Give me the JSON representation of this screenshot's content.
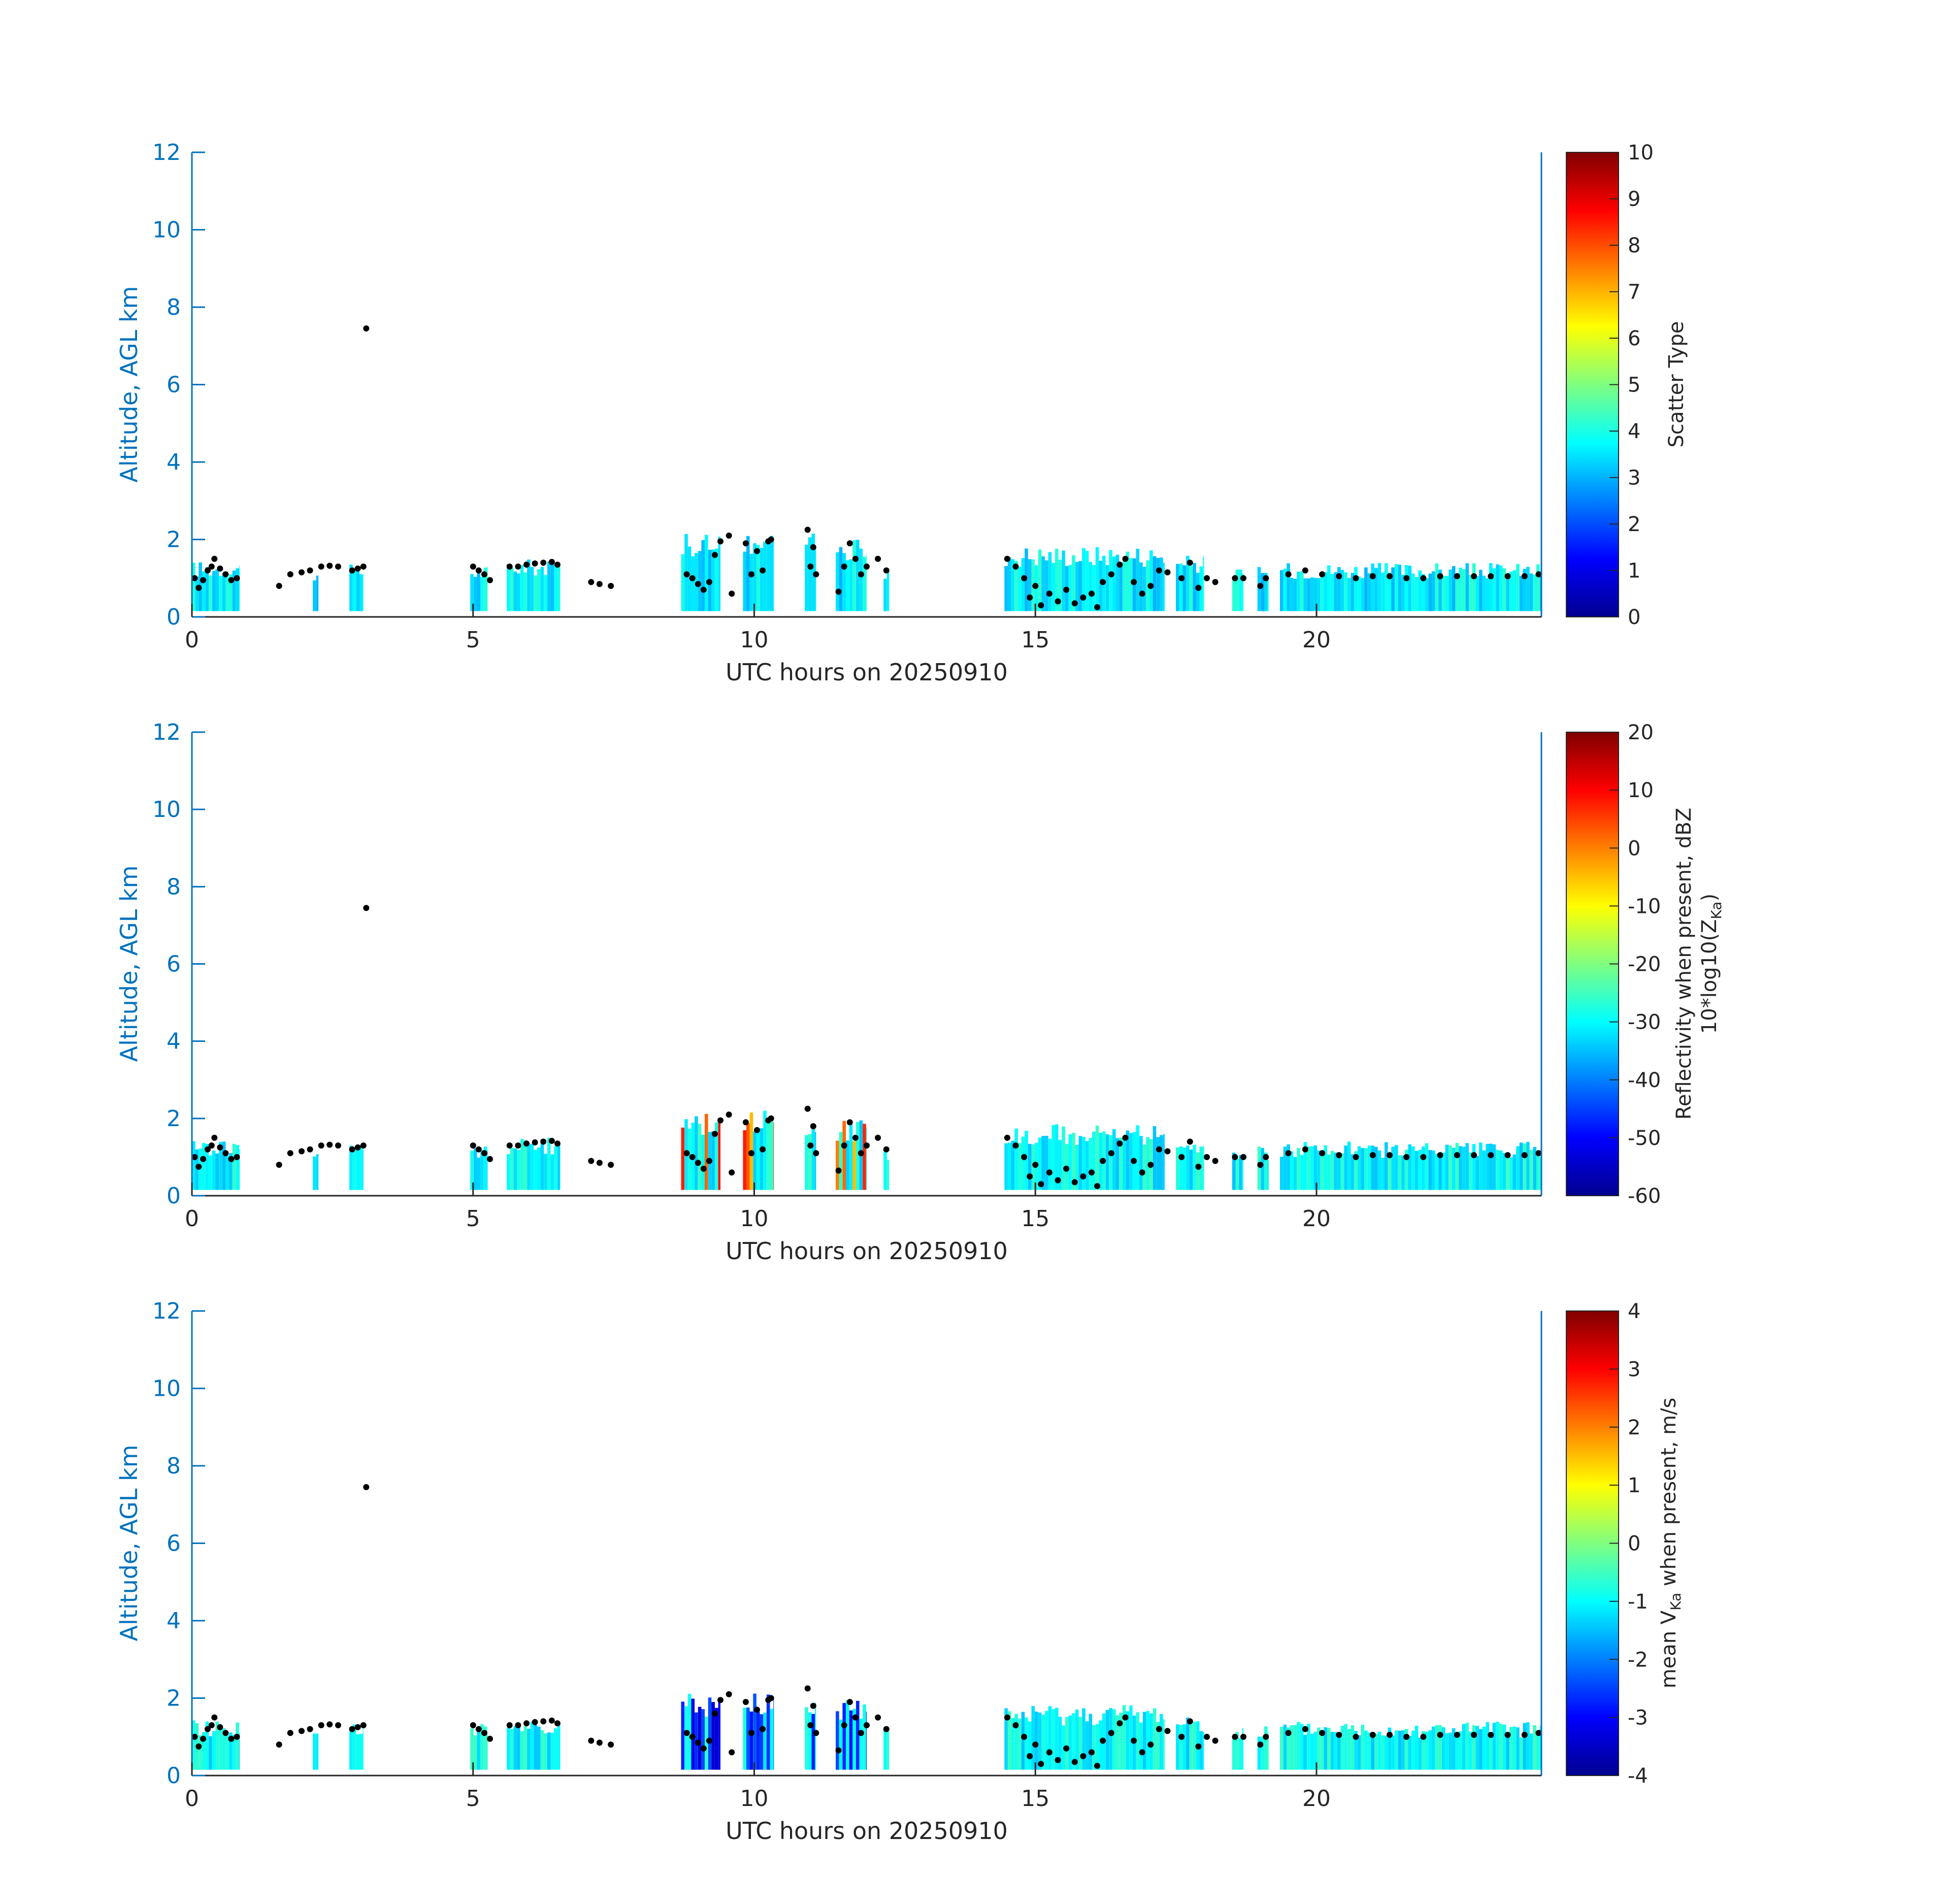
{
  "colors": {
    "axis_left": "#0072BD",
    "axis_bottom": "#262626",
    "points": "#000000",
    "colormap": "jet"
  },
  "chart_data": [
    {
      "type": "heatmap",
      "xlabel": "UTC hours on 20250910",
      "ylabel": "Altitude, AGL km",
      "xlim": [
        0,
        24
      ],
      "ylim": [
        0,
        12
      ],
      "xticks": [
        "0",
        "5",
        "10",
        "15",
        "20"
      ],
      "yticks": [
        "0",
        "2",
        "4",
        "6",
        "8",
        "10",
        "12"
      ],
      "colorbar": {
        "label": "Scatter Type",
        "range": [
          0,
          10
        ],
        "ticks": [
          "0",
          "1",
          "2",
          "3",
          "4",
          "5",
          "6",
          "7",
          "8",
          "9",
          "10"
        ]
      },
      "dominant_value": 3.6
    },
    {
      "type": "heatmap",
      "xlabel": "UTC hours on 20250910",
      "ylabel": "Altitude, AGL km",
      "xlim": [
        0,
        24
      ],
      "ylim": [
        0,
        12
      ],
      "xticks": [
        "0",
        "5",
        "10",
        "15",
        "20"
      ],
      "yticks": [
        "0",
        "2",
        "4",
        "6",
        "8",
        "10",
        "12"
      ],
      "colorbar": {
        "label_line1": "Reflectivity when present, dBZ",
        "label_line2": "10*log10(Z",
        "label_sub": "Ka",
        "label_close": ")",
        "range": [
          -60,
          20
        ],
        "ticks": [
          "-60",
          "-50",
          "-40",
          "-30",
          "-20",
          "-10",
          "0",
          "10",
          "20"
        ]
      },
      "dominant_value": -30
    },
    {
      "type": "heatmap",
      "xlabel": "UTC hours on 20250910",
      "ylabel": "Altitude, AGL km",
      "xlim": [
        0,
        24
      ],
      "ylim": [
        0,
        12
      ],
      "xticks": [
        "0",
        "5",
        "10",
        "15",
        "20"
      ],
      "yticks": [
        "0",
        "2",
        "4",
        "6",
        "8",
        "10",
        "12"
      ],
      "colorbar": {
        "label_pre": "mean V",
        "label_sub": "Ka",
        "label_post": " when present, m/s",
        "range": [
          -4,
          4
        ],
        "ticks": [
          "-4",
          "-3",
          "-2",
          "-1",
          "0",
          "1",
          "2",
          "3",
          "4"
        ]
      },
      "dominant_value": -1
    }
  ],
  "cloud_segments": [
    {
      "start": 0.0,
      "end": 0.85,
      "top": 1.45
    },
    {
      "start": 2.15,
      "end": 2.25,
      "top": 1.3
    },
    {
      "start": 2.8,
      "end": 3.05,
      "top": 1.35
    },
    {
      "start": 4.95,
      "end": 5.25,
      "top": 1.35
    },
    {
      "start": 5.6,
      "end": 6.55,
      "top": 1.5
    },
    {
      "start": 8.7,
      "end": 9.4,
      "top": 2.15
    },
    {
      "start": 9.8,
      "end": 10.35,
      "top": 2.2
    },
    {
      "start": 10.9,
      "end": 11.1,
      "top": 2.2
    },
    {
      "start": 11.45,
      "end": 12.0,
      "top": 2.0
    },
    {
      "start": 12.3,
      "end": 12.4,
      "top": 1.25
    },
    {
      "start": 14.45,
      "end": 17.3,
      "top": 1.85
    },
    {
      "start": 17.5,
      "end": 18.0,
      "top": 1.6
    },
    {
      "start": 18.5,
      "end": 18.7,
      "top": 1.3
    },
    {
      "start": 18.95,
      "end": 19.15,
      "top": 1.3
    },
    {
      "start": 19.35,
      "end": 24.0,
      "top": 1.4
    }
  ],
  "cloud_base_points": [
    [
      0.05,
      1.0
    ],
    [
      0.12,
      0.75
    ],
    [
      0.2,
      0.95
    ],
    [
      0.28,
      1.2
    ],
    [
      0.35,
      1.3
    ],
    [
      0.4,
      1.5
    ],
    [
      0.5,
      1.25
    ],
    [
      0.6,
      1.1
    ],
    [
      0.7,
      0.95
    ],
    [
      0.8,
      1.0
    ],
    [
      1.55,
      0.8
    ],
    [
      1.75,
      1.1
    ],
    [
      1.95,
      1.15
    ],
    [
      2.1,
      1.2
    ],
    [
      2.3,
      1.3
    ],
    [
      2.45,
      1.32
    ],
    [
      2.6,
      1.3
    ],
    [
      2.85,
      1.2
    ],
    [
      2.95,
      1.25
    ],
    [
      3.05,
      1.3
    ],
    [
      3.1,
      7.45
    ],
    [
      5.0,
      1.3
    ],
    [
      5.1,
      1.2
    ],
    [
      5.2,
      1.1
    ],
    [
      5.3,
      0.95
    ],
    [
      5.65,
      1.3
    ],
    [
      5.8,
      1.3
    ],
    [
      5.95,
      1.35
    ],
    [
      6.1,
      1.38
    ],
    [
      6.25,
      1.4
    ],
    [
      6.4,
      1.42
    ],
    [
      6.5,
      1.35
    ],
    [
      7.1,
      0.9
    ],
    [
      7.25,
      0.85
    ],
    [
      7.45,
      0.8
    ],
    [
      8.8,
      1.1
    ],
    [
      8.9,
      1.0
    ],
    [
      9.0,
      0.85
    ],
    [
      9.1,
      0.7
    ],
    [
      9.2,
      0.9
    ],
    [
      9.3,
      1.6
    ],
    [
      9.4,
      1.95
    ],
    [
      9.55,
      2.1
    ],
    [
      9.6,
      0.6
    ],
    [
      9.85,
      1.9
    ],
    [
      9.95,
      1.1
    ],
    [
      10.05,
      1.7
    ],
    [
      10.15,
      1.2
    ],
    [
      10.25,
      1.95
    ],
    [
      10.3,
      2.0
    ],
    [
      10.95,
      2.25
    ],
    [
      11.0,
      1.3
    ],
    [
      11.05,
      1.8
    ],
    [
      11.1,
      1.1
    ],
    [
      11.5,
      0.65
    ],
    [
      11.6,
      1.3
    ],
    [
      11.7,
      1.9
    ],
    [
      11.8,
      1.5
    ],
    [
      11.9,
      1.1
    ],
    [
      12.0,
      1.3
    ],
    [
      12.2,
      1.5
    ],
    [
      12.35,
      1.2
    ],
    [
      14.5,
      1.5
    ],
    [
      14.65,
      1.3
    ],
    [
      14.8,
      1.0
    ],
    [
      14.9,
      0.5
    ],
    [
      15.0,
      0.8
    ],
    [
      15.1,
      0.3
    ],
    [
      15.25,
      0.6
    ],
    [
      15.4,
      0.4
    ],
    [
      15.55,
      0.7
    ],
    [
      15.7,
      0.35
    ],
    [
      15.85,
      0.5
    ],
    [
      16.0,
      0.6
    ],
    [
      16.1,
      0.25
    ],
    [
      16.2,
      0.9
    ],
    [
      16.35,
      1.1
    ],
    [
      16.5,
      1.35
    ],
    [
      16.6,
      1.5
    ],
    [
      16.75,
      0.9
    ],
    [
      16.9,
      0.6
    ],
    [
      17.05,
      0.8
    ],
    [
      17.2,
      1.2
    ],
    [
      17.35,
      1.15
    ],
    [
      17.6,
      1.0
    ],
    [
      17.75,
      1.4
    ],
    [
      17.9,
      0.75
    ],
    [
      18.05,
      1.0
    ],
    [
      18.2,
      0.9
    ],
    [
      18.55,
      1.0
    ],
    [
      18.7,
      1.0
    ],
    [
      19.0,
      0.8
    ],
    [
      19.1,
      1.0
    ],
    [
      19.5,
      1.1
    ],
    [
      19.8,
      1.2
    ],
    [
      20.1,
      1.1
    ],
    [
      20.4,
      1.05
    ],
    [
      20.7,
      1.0
    ],
    [
      21.0,
      1.05
    ],
    [
      21.3,
      1.05
    ],
    [
      21.6,
      1.0
    ],
    [
      21.9,
      1.0
    ],
    [
      22.2,
      1.05
    ],
    [
      22.5,
      1.05
    ],
    [
      22.8,
      1.05
    ],
    [
      23.1,
      1.05
    ],
    [
      23.4,
      1.05
    ],
    [
      23.7,
      1.05
    ],
    [
      23.95,
      1.1
    ]
  ]
}
